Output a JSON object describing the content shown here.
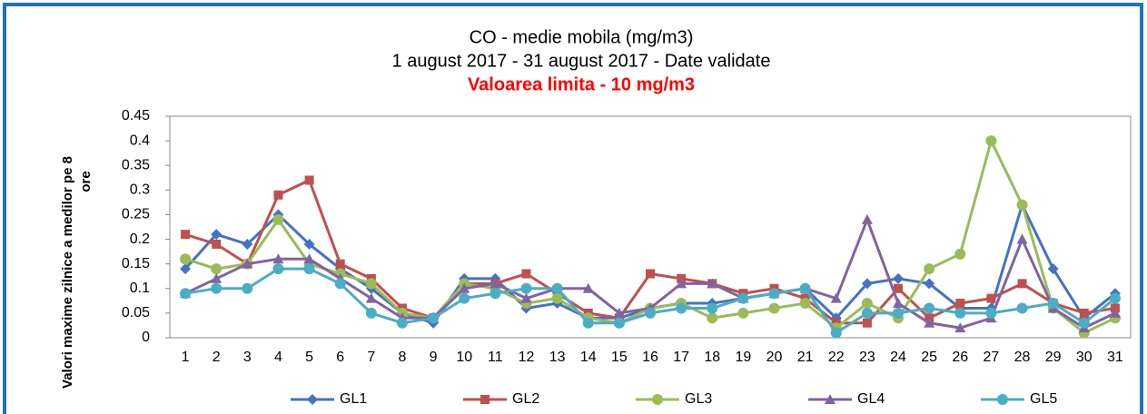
{
  "chart_data": {
    "type": "line",
    "title": "CO - medie mobila (mg/m3)",
    "subtitle": "1 august 2017 - 31 august 2017 - Date validate",
    "annotation": "Valoarea limita - 10 mg/m3",
    "y_label": [
      "Valori maxime zilnice a medilor pe 8",
      "ore"
    ],
    "categories": [
      "1",
      "2",
      "3",
      "4",
      "5",
      "6",
      "7",
      "8",
      "9",
      "10",
      "11",
      "12",
      "13",
      "14",
      "15",
      "16",
      "17",
      "18",
      "19",
      "20",
      "21",
      "22",
      "23",
      "24",
      "25",
      "26",
      "27",
      "28",
      "29",
      "30",
      "31"
    ],
    "ylim": [
      0,
      0.45
    ],
    "yticks": [
      0,
      0.05,
      0.1,
      0.15,
      0.2,
      0.25,
      0.3,
      0.35,
      0.4,
      0.45
    ],
    "legend": "bottom",
    "series": [
      {
        "name": "GL1",
        "color": "#4472c4",
        "marker": "diamond",
        "values": [
          0.14,
          0.21,
          0.19,
          0.25,
          0.19,
          0.14,
          0.1,
          0.05,
          0.03,
          0.12,
          0.12,
          0.06,
          0.07,
          0.04,
          0.04,
          0.06,
          0.07,
          0.07,
          0.08,
          0.09,
          0.1,
          0.04,
          0.11,
          0.12,
          0.11,
          0.06,
          0.06,
          0.27,
          0.14,
          0.04,
          0.09
        ]
      },
      {
        "name": "GL2",
        "color": "#c0504d",
        "marker": "square",
        "values": [
          0.21,
          0.19,
          0.15,
          0.29,
          0.32,
          0.15,
          0.12,
          0.06,
          0.04,
          0.11,
          0.11,
          0.13,
          0.09,
          0.05,
          0.04,
          0.13,
          0.12,
          0.11,
          0.09,
          0.1,
          0.08,
          0.03,
          0.03,
          0.1,
          0.04,
          0.07,
          0.08,
          0.11,
          0.07,
          0.05,
          0.06
        ]
      },
      {
        "name": "GL3",
        "color": "#9bbb59",
        "marker": "circle",
        "values": [
          0.16,
          0.14,
          0.15,
          0.24,
          0.15,
          0.13,
          0.11,
          0.05,
          0.04,
          0.11,
          0.1,
          0.07,
          0.08,
          0.04,
          0.03,
          0.06,
          0.07,
          0.04,
          0.05,
          0.06,
          0.07,
          0.02,
          0.07,
          0.04,
          0.14,
          0.17,
          0.4,
          0.27,
          0.06,
          0.01,
          0.04
        ]
      },
      {
        "name": "GL4",
        "color": "#8064a2",
        "marker": "triangle",
        "values": [
          0.09,
          0.12,
          0.15,
          0.16,
          0.16,
          0.12,
          0.08,
          0.04,
          0.04,
          0.1,
          0.11,
          0.08,
          0.1,
          0.1,
          0.05,
          0.06,
          0.11,
          0.11,
          0.08,
          0.09,
          0.1,
          0.08,
          0.24,
          0.07,
          0.03,
          0.02,
          0.04,
          0.2,
          0.06,
          0.02,
          0.05
        ]
      },
      {
        "name": "GL5",
        "color": "#4bacc6",
        "marker": "circle",
        "values": [
          0.09,
          0.1,
          0.1,
          0.14,
          0.14,
          0.11,
          0.05,
          0.03,
          0.04,
          0.08,
          0.09,
          0.1,
          0.1,
          0.03,
          0.03,
          0.05,
          0.06,
          0.06,
          0.08,
          0.09,
          0.1,
          0.01,
          0.05,
          0.05,
          0.06,
          0.05,
          0.05,
          0.06,
          0.07,
          0.03,
          0.08
        ]
      }
    ]
  }
}
